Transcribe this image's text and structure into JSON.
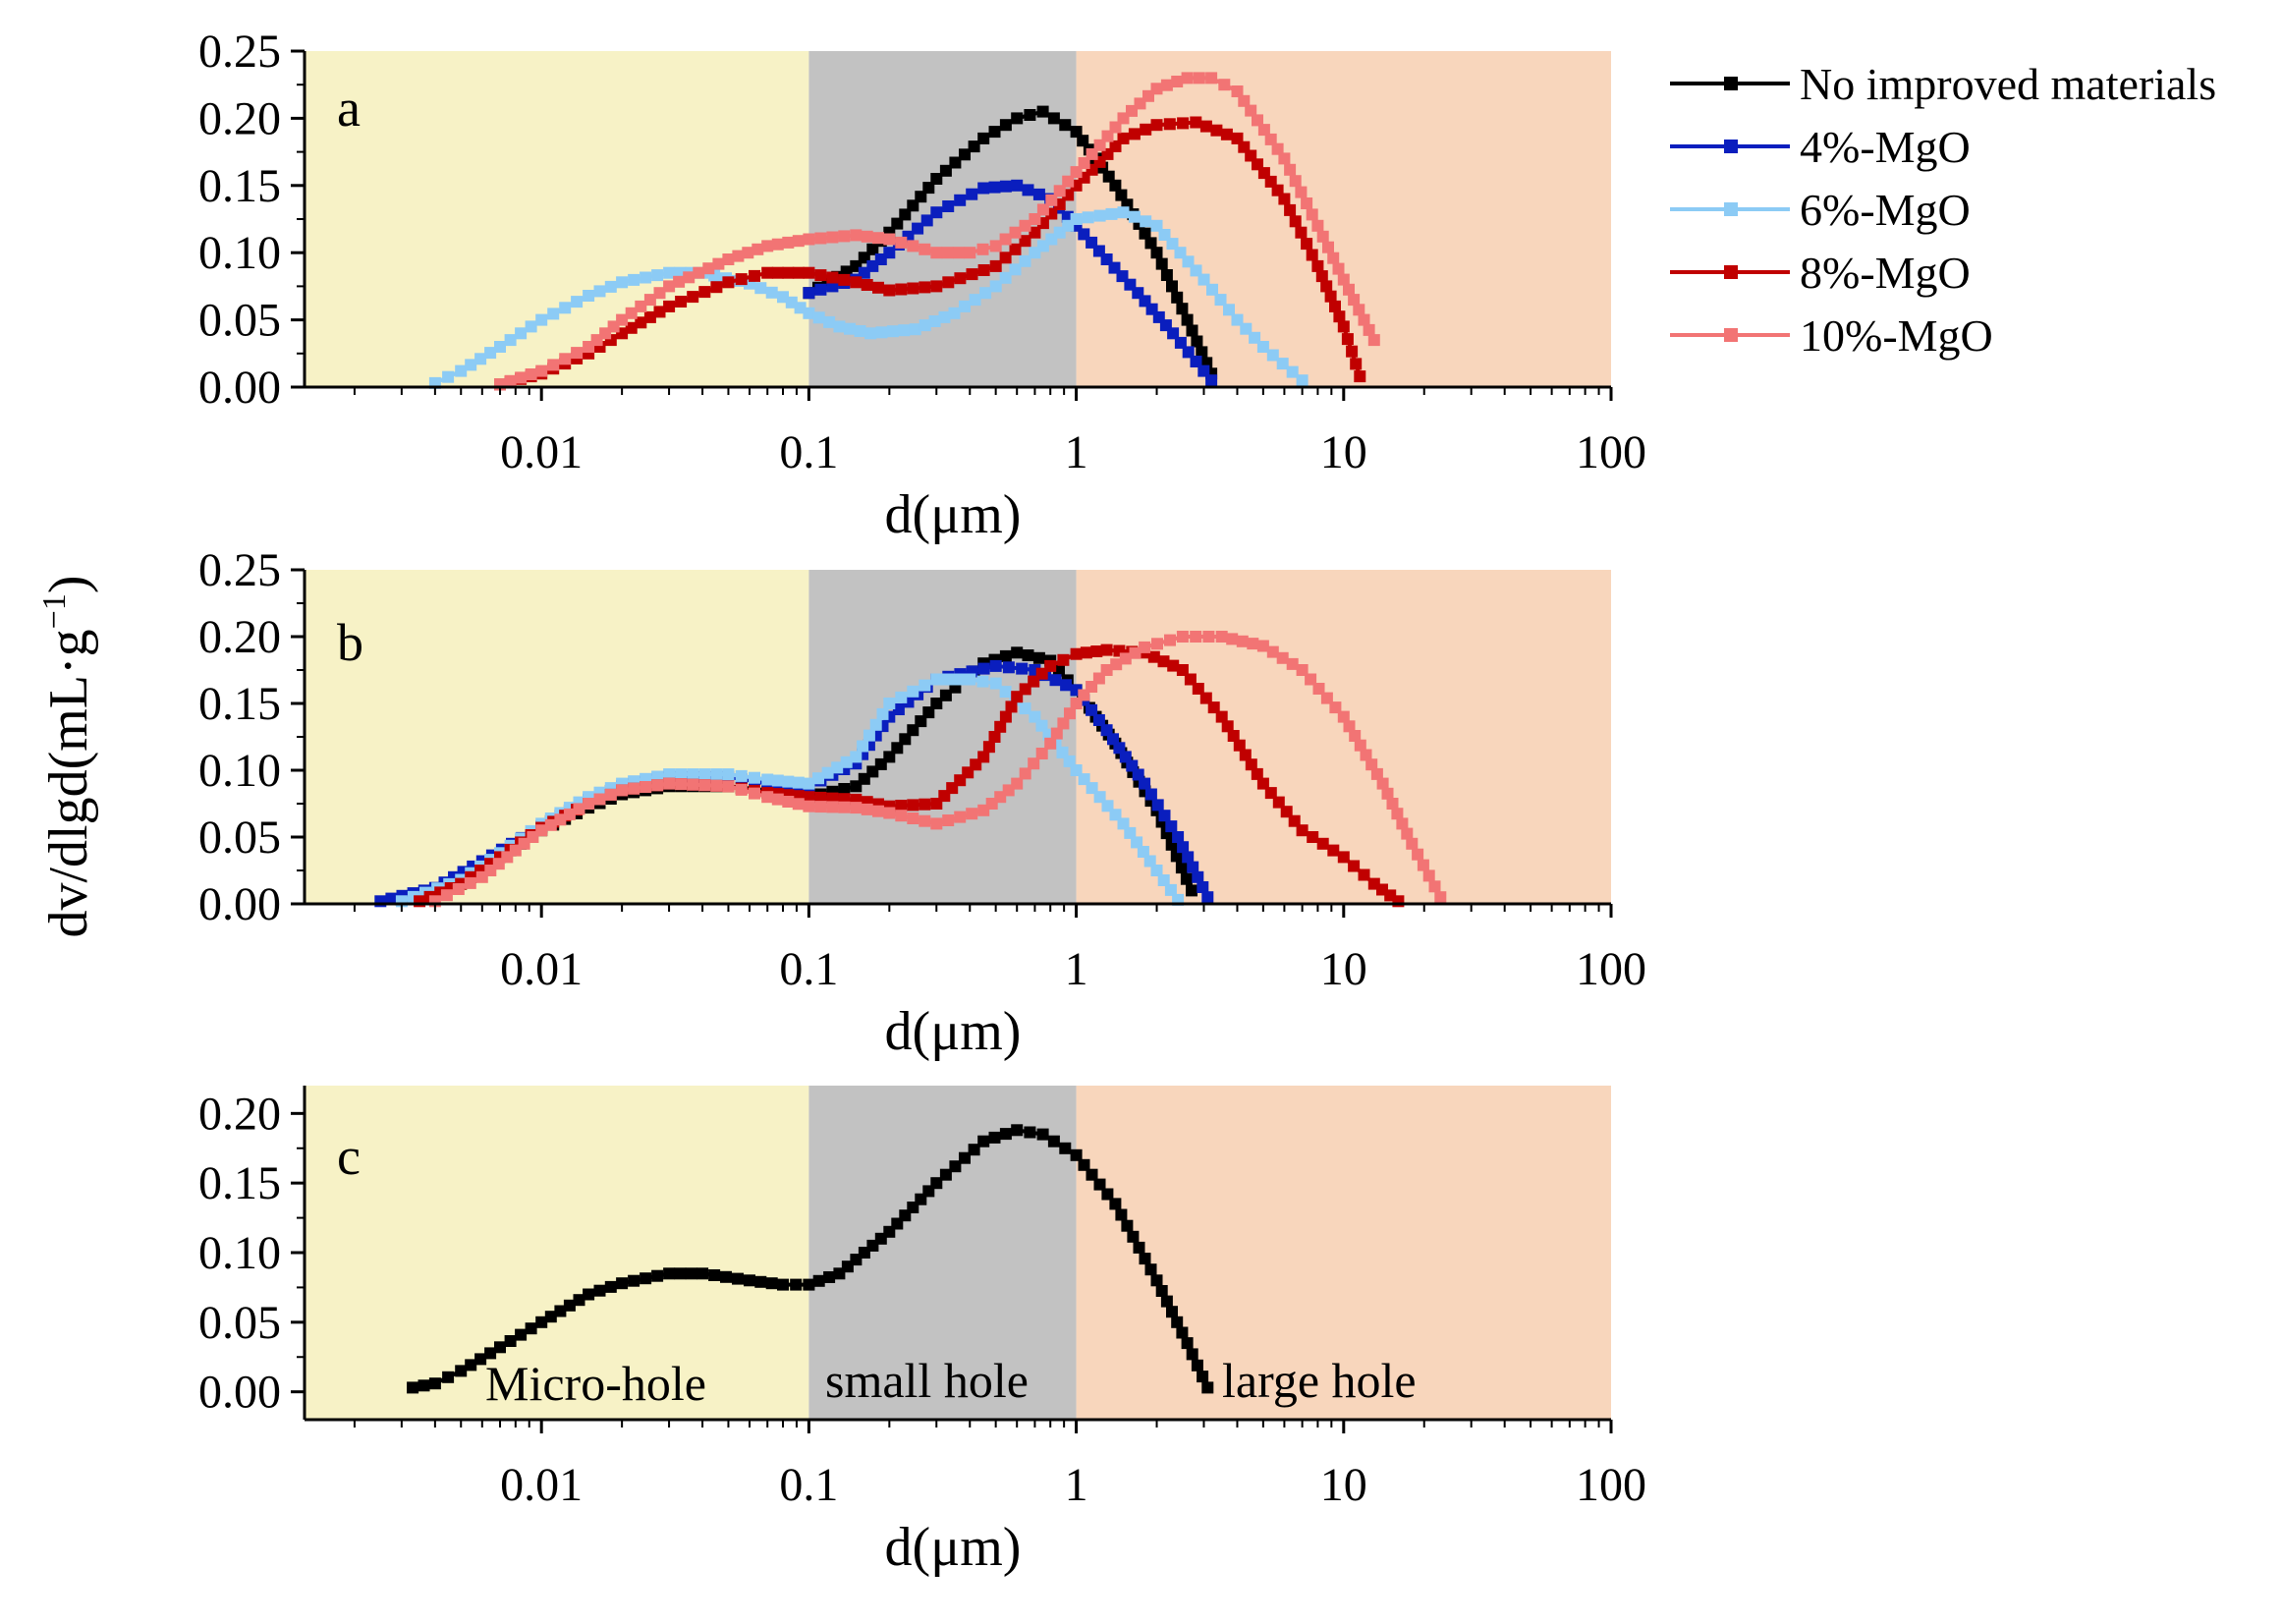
{
  "colors": {
    "micro": "#F7F2C6",
    "small": "#C2C2C2",
    "large": "#F8D6BC"
  },
  "legend": [
    {
      "name": "No improved materials",
      "color": "#000000"
    },
    {
      "name": "4%-MgO",
      "color": "#0A1EBE"
    },
    {
      "name": "6%-MgO",
      "color": "#8CCBF5"
    },
    {
      "name": "8%-MgO",
      "color": "#C00000"
    },
    {
      "name": "10%-MgO",
      "color": "#F27474"
    }
  ],
  "y_axis_title": "dv/dlgd(mL·g",
  "y_axis_title_sup": "−1",
  "y_axis_title_close": ")",
  "region_labels": [
    "Micro-hole",
    "small hole",
    "large hole"
  ],
  "chart_data": [
    {
      "type": "line",
      "panel": "a",
      "xscale": "log",
      "xlim": [
        0.0013,
        100
      ],
      "ylim": [
        0,
        0.25
      ],
      "xlabel": "d(μm)",
      "xticklabels": [
        "0.01",
        "0.1",
        "1",
        "10",
        "100"
      ],
      "yticklabels": [
        "0.00",
        "0.05",
        "0.10",
        "0.15",
        "0.20",
        "0.25"
      ],
      "regions": {
        "micro": [
          0.0013,
          0.1
        ],
        "small": [
          0.1,
          1
        ],
        "large": [
          1,
          100
        ]
      },
      "series": [
        {
          "name": "No improved materials",
          "color": "#000000",
          "x": [
            0.1,
            0.15,
            0.2,
            0.3,
            0.45,
            0.6,
            0.75,
            1,
            1.4,
            2,
            2.6,
            3.2
          ],
          "y": [
            0.07,
            0.09,
            0.115,
            0.155,
            0.185,
            0.2,
            0.205,
            0.19,
            0.15,
            0.1,
            0.05,
            0.01
          ]
        },
        {
          "name": "4%-MgO",
          "color": "#0A1EBE",
          "x": [
            0.1,
            0.15,
            0.2,
            0.3,
            0.45,
            0.6,
            0.8,
            1,
            1.3,
            1.7,
            2.3,
            3.2
          ],
          "y": [
            0.07,
            0.08,
            0.1,
            0.13,
            0.148,
            0.15,
            0.14,
            0.12,
            0.095,
            0.07,
            0.04,
            0.005
          ]
        },
        {
          "name": "6%-MgO",
          "color": "#8CCBF5",
          "x": [
            0.004,
            0.005,
            0.007,
            0.01,
            0.015,
            0.02,
            0.03,
            0.04,
            0.06,
            0.08,
            0.1,
            0.13,
            0.17,
            0.25,
            0.35,
            0.5,
            0.7,
            1,
            1.5,
            2,
            3,
            4,
            5,
            7
          ],
          "y": [
            0.003,
            0.012,
            0.03,
            0.05,
            0.068,
            0.078,
            0.085,
            0.085,
            0.077,
            0.067,
            0.055,
            0.045,
            0.04,
            0.043,
            0.055,
            0.075,
            0.1,
            0.125,
            0.13,
            0.12,
            0.08,
            0.05,
            0.03,
            0.005
          ]
        },
        {
          "name": "8%-MgO",
          "color": "#C00000",
          "x": [
            0.007,
            0.01,
            0.015,
            0.02,
            0.03,
            0.05,
            0.07,
            0.1,
            0.15,
            0.2,
            0.3,
            0.5,
            0.7,
            1,
            1.5,
            2,
            2.8,
            4,
            6,
            8,
            10,
            11.5
          ],
          "y": [
            0.002,
            0.01,
            0.025,
            0.04,
            0.06,
            0.078,
            0.085,
            0.085,
            0.078,
            0.072,
            0.075,
            0.09,
            0.115,
            0.15,
            0.185,
            0.195,
            0.197,
            0.185,
            0.14,
            0.09,
            0.045,
            0.008
          ]
        },
        {
          "name": "10%-MgO",
          "color": "#F27474",
          "x": [
            0.007,
            0.01,
            0.015,
            0.02,
            0.03,
            0.05,
            0.07,
            0.1,
            0.15,
            0.2,
            0.3,
            0.4,
            0.5,
            0.7,
            1,
            1.5,
            2,
            2.6,
            3.2,
            4,
            6,
            8,
            10,
            13
          ],
          "y": [
            0.002,
            0.012,
            0.03,
            0.05,
            0.075,
            0.095,
            0.105,
            0.11,
            0.113,
            0.11,
            0.1,
            0.1,
            0.105,
            0.125,
            0.16,
            0.2,
            0.222,
            0.23,
            0.23,
            0.22,
            0.17,
            0.12,
            0.08,
            0.035
          ]
        }
      ]
    },
    {
      "type": "line",
      "panel": "b",
      "xscale": "log",
      "xlim": [
        0.0013,
        100
      ],
      "ylim": [
        0,
        0.25
      ],
      "xlabel": "d(μm)",
      "xticklabels": [
        "0.01",
        "0.1",
        "1",
        "10",
        "100"
      ],
      "yticklabels": [
        "0.00",
        "0.05",
        "0.10",
        "0.15",
        "0.20",
        "0.25"
      ],
      "regions": {
        "micro": [
          0.0013,
          0.1
        ],
        "small": [
          0.1,
          1
        ],
        "large": [
          1,
          100
        ]
      },
      "series": [
        {
          "name": "No improved materials",
          "color": "#000000",
          "x": [
            0.003,
            0.005,
            0.007,
            0.01,
            0.015,
            0.02,
            0.03,
            0.05,
            0.07,
            0.1,
            0.15,
            0.2,
            0.3,
            0.45,
            0.6,
            0.8,
            1,
            1.4,
            2,
            2.7
          ],
          "y": [
            0.003,
            0.015,
            0.035,
            0.055,
            0.072,
            0.082,
            0.088,
            0.088,
            0.085,
            0.08,
            0.088,
            0.11,
            0.15,
            0.18,
            0.188,
            0.182,
            0.16,
            0.12,
            0.07,
            0.01
          ]
        },
        {
          "name": "4%-MgO",
          "color": "#0A1EBE",
          "x": [
            0.0025,
            0.004,
            0.006,
            0.01,
            0.015,
            0.02,
            0.03,
            0.05,
            0.07,
            0.1,
            0.15,
            0.2,
            0.3,
            0.5,
            0.7,
            1,
            1.3,
            1.8,
            2.4,
            3.1
          ],
          "y": [
            0.002,
            0.012,
            0.032,
            0.058,
            0.078,
            0.088,
            0.095,
            0.095,
            0.09,
            0.088,
            0.105,
            0.14,
            0.168,
            0.178,
            0.175,
            0.16,
            0.13,
            0.09,
            0.05,
            0.005
          ]
        },
        {
          "name": "6%-MgO",
          "color": "#8CCBF5",
          "x": [
            0.003,
            0.005,
            0.007,
            0.01,
            0.015,
            0.02,
            0.03,
            0.05,
            0.07,
            0.1,
            0.15,
            0.2,
            0.3,
            0.4,
            0.5,
            0.7,
            1,
            1.5,
            2,
            2.4
          ],
          "y": [
            0.002,
            0.018,
            0.038,
            0.06,
            0.08,
            0.09,
            0.097,
            0.097,
            0.093,
            0.09,
            0.11,
            0.15,
            0.168,
            0.168,
            0.165,
            0.14,
            0.1,
            0.06,
            0.025,
            0.003
          ]
        },
        {
          "name": "8%-MgO",
          "color": "#C00000",
          "x": [
            0.0035,
            0.005,
            0.007,
            0.01,
            0.015,
            0.02,
            0.03,
            0.05,
            0.07,
            0.1,
            0.15,
            0.2,
            0.3,
            0.45,
            0.6,
            0.8,
            1,
            1.3,
            1.8,
            2.5,
            3.5,
            5,
            7,
            10,
            13,
            16
          ],
          "y": [
            0.002,
            0.015,
            0.035,
            0.057,
            0.075,
            0.085,
            0.09,
            0.088,
            0.083,
            0.08,
            0.078,
            0.073,
            0.075,
            0.11,
            0.155,
            0.178,
            0.187,
            0.19,
            0.188,
            0.175,
            0.14,
            0.09,
            0.055,
            0.035,
            0.015,
            0.002
          ]
        },
        {
          "name": "10%-MgO",
          "color": "#F27474",
          "x": [
            0.004,
            0.006,
            0.008,
            0.01,
            0.015,
            0.02,
            0.03,
            0.05,
            0.07,
            0.1,
            0.15,
            0.2,
            0.3,
            0.45,
            0.6,
            0.8,
            1,
            1.3,
            1.8,
            2.5,
            3.5,
            5,
            7,
            10,
            14,
            18,
            23
          ],
          "y": [
            0.002,
            0.02,
            0.04,
            0.055,
            0.075,
            0.085,
            0.09,
            0.088,
            0.08,
            0.073,
            0.072,
            0.068,
            0.06,
            0.07,
            0.09,
            0.12,
            0.15,
            0.175,
            0.192,
            0.2,
            0.2,
            0.193,
            0.175,
            0.14,
            0.09,
            0.045,
            0.005
          ]
        }
      ]
    },
    {
      "type": "line",
      "panel": "c",
      "xscale": "log",
      "xlim": [
        0.0013,
        100
      ],
      "ylim": [
        -0.02,
        0.22
      ],
      "xlabel": "d(μm)",
      "xticklabels": [
        "0.01",
        "0.1",
        "1",
        "10",
        "100"
      ],
      "yticklabels": [
        "0.00",
        "0.05",
        "0.10",
        "0.15",
        "0.20"
      ],
      "regions": {
        "micro": [
          0.0013,
          0.1
        ],
        "small": [
          0.1,
          1
        ],
        "large": [
          1,
          100
        ]
      },
      "series": [
        {
          "name": "No improved materials",
          "color": "#000000",
          "x": [
            0.0033,
            0.004,
            0.005,
            0.007,
            0.01,
            0.015,
            0.02,
            0.03,
            0.04,
            0.06,
            0.08,
            0.1,
            0.13,
            0.2,
            0.3,
            0.45,
            0.6,
            0.75,
            1,
            1.4,
            2,
            2.6,
            3.1
          ],
          "y": [
            0.003,
            0.006,
            0.015,
            0.032,
            0.05,
            0.07,
            0.078,
            0.085,
            0.085,
            0.08,
            0.077,
            0.077,
            0.085,
            0.115,
            0.15,
            0.18,
            0.188,
            0.185,
            0.17,
            0.135,
            0.08,
            0.035,
            0.003
          ]
        }
      ]
    }
  ]
}
